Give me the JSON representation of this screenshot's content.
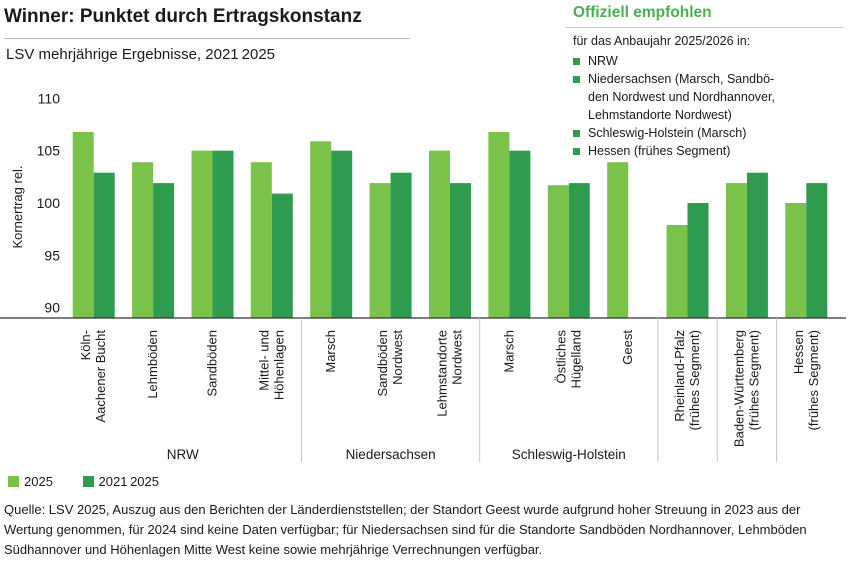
{
  "title": "Winner: Punktet durch Ertragskonstanz",
  "subtitle": "LSV mehrjährige Ergebnisse, 2021 2025",
  "recommendation": {
    "title": "Offiziell empfohlen",
    "intro": "für das Anbaujahr 2025/2026 in:",
    "items": [
      "NRW",
      "Niedersachsen (Marsch, Sandbö-\nden Nordwest und Nordhannover,\nLehmstandorte Nordwest)",
      "Schleswig-Holstein (Marsch)",
      "Hessen (frühes Segment)"
    ],
    "marker_color": "#2e9b4f"
  },
  "legend": [
    {
      "label": "2025",
      "color": "#7bc24b"
    },
    {
      "label": "2021 2025",
      "color": "#2e9b4f"
    }
  ],
  "source": "Quelle: LSV 2025, Auszug aus den Berichten der Länderdienststellen; der Standort Geest wurde aufgrund hoher Streuung in 2023 aus der Wertung genommen, für 2024 sind keine Daten verfügbar; für Niedersachsen sind für die Standorte Sandböden Nordhannover, Lehmböden Südhannover und Höhenlagen Mitte West keine  sowie mehrjährige Verrechnungen verfügbar.",
  "chart_data": {
    "type": "bar",
    "ylabel": "Kornertrag rel.",
    "ylim": [
      89,
      111
    ],
    "yticks": [
      90,
      95,
      100,
      105,
      110
    ],
    "categories": [
      "Köln-\nAachener Bucht",
      "Lehmböden",
      "Sandböden",
      "Mittel- und\nHöhenlagen",
      "Marsch",
      "Sandböden\nNordwest",
      "Lehmstandorte\nNordwest",
      "Marsch",
      "Östliches\nHügelland",
      "Geest",
      "Rheinland-Pfalz\n(frühes Segment)",
      "Baden-Württemberg\n(frühes Segment)",
      "Hessen\n(frühes Segment)"
    ],
    "groups": [
      {
        "label": "NRW",
        "start": 0,
        "end": 3
      },
      {
        "label": "Niedersachsen",
        "start": 4,
        "end": 6
      },
      {
        "label": "Schleswig-Holstein",
        "start": 7,
        "end": 9
      },
      {
        "label": "",
        "start": 10,
        "end": 10
      },
      {
        "label": "",
        "start": 11,
        "end": 11
      },
      {
        "label": "",
        "start": 12,
        "end": 12
      }
    ],
    "series": [
      {
        "name": "2025",
        "color": "#7bc24b",
        "values": [
          106.8,
          103.9,
          105,
          103.9,
          105.9,
          101.9,
          105,
          106.8,
          101.7,
          103.9,
          97.9,
          101.9,
          100
        ]
      },
      {
        "name": "2021 2025",
        "color": "#2e9b4f",
        "values": [
          102.9,
          101.9,
          105,
          100.9,
          105,
          102.9,
          101.9,
          105,
          101.9,
          null,
          100,
          102.9,
          101.9
        ]
      }
    ],
    "grid": false,
    "legend_position": "bottom-left"
  }
}
